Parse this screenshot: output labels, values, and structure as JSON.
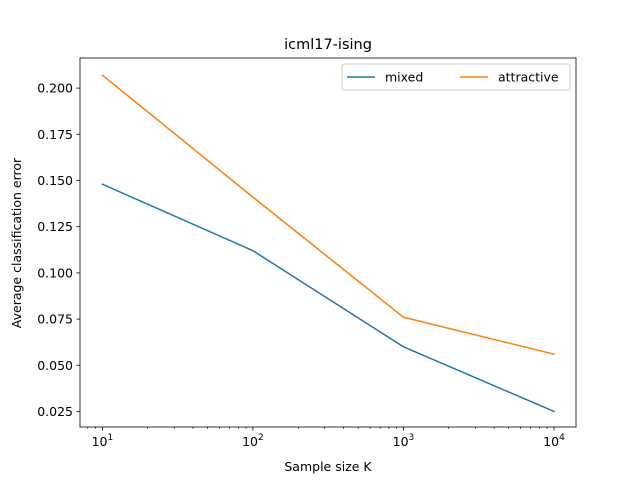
{
  "colors": {
    "mixed": "#1f77b4",
    "attractive": "#ff7f0e",
    "axis": "#000000",
    "legend_border": "#cccccc"
  },
  "chart_data": {
    "type": "line",
    "title": "icml17-ising",
    "xlabel": "Sample size K",
    "ylabel": "Average classification error",
    "xscale": "log",
    "x": [
      10,
      100,
      1000,
      10000
    ],
    "xlim": [
      7.1,
      14000
    ],
    "ylim": [
      0.0166,
      0.2163
    ],
    "xticks": [
      {
        "value": 10,
        "base": "10",
        "exp": "1"
      },
      {
        "value": 100,
        "base": "10",
        "exp": "2"
      },
      {
        "value": 1000,
        "base": "10",
        "exp": "3"
      },
      {
        "value": 10000,
        "base": "10",
        "exp": "4"
      }
    ],
    "yticks": [
      {
        "value": 0.025,
        "label": "0.025"
      },
      {
        "value": 0.05,
        "label": "0.050"
      },
      {
        "value": 0.075,
        "label": "0.075"
      },
      {
        "value": 0.1,
        "label": "0.100"
      },
      {
        "value": 0.125,
        "label": "0.125"
      },
      {
        "value": 0.15,
        "label": "0.150"
      },
      {
        "value": 0.175,
        "label": "0.175"
      },
      {
        "value": 0.2,
        "label": "0.200"
      }
    ],
    "series": [
      {
        "name": "mixed",
        "color": "#1f77b4",
        "values": [
          0.148,
          0.112,
          0.06,
          0.025
        ]
      },
      {
        "name": "attractive",
        "color": "#ff7f0e",
        "values": [
          0.207,
          0.141,
          0.076,
          0.056
        ]
      }
    ],
    "legend": {
      "placement": "top-right",
      "columns": 2
    },
    "grid": false
  }
}
